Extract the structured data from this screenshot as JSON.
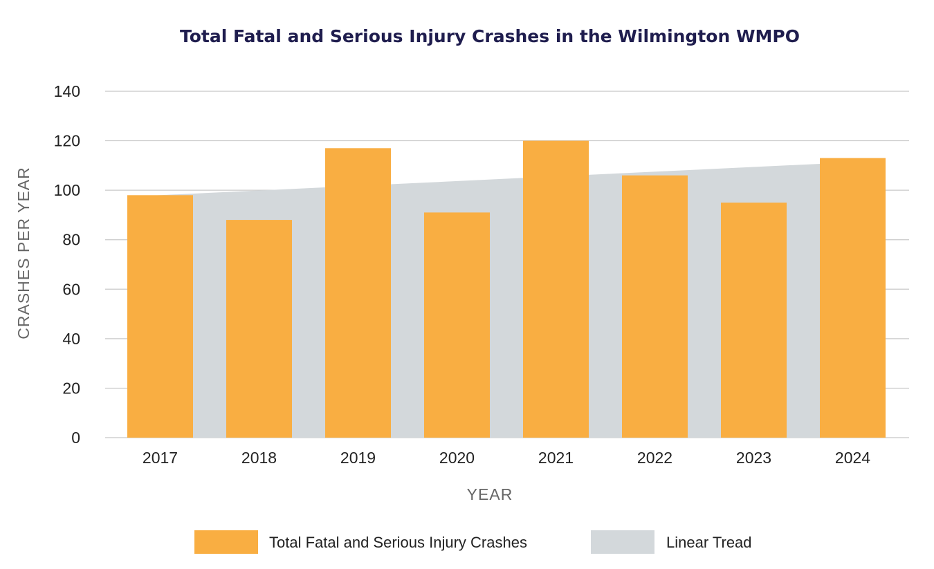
{
  "chart_data": {
    "type": "bar",
    "title": "Total Fatal and Serious Injury Crashes in the Wilmington WMPO",
    "xlabel": "YEAR",
    "ylabel": "CRASHES PER YEAR",
    "categories": [
      "2017",
      "2018",
      "2019",
      "2020",
      "2021",
      "2022",
      "2023",
      "2024"
    ],
    "series": [
      {
        "name": "Total Fatal and Serious Injury Crashes",
        "type": "bar",
        "color": "#F9AE42",
        "values": [
          98,
          88,
          117,
          91,
          120,
          106,
          95,
          113
        ]
      },
      {
        "name": "Linear Tread",
        "type": "area",
        "color": "#D3D8DB",
        "values": [
          98.0,
          99.9,
          101.8,
          103.7,
          105.6,
          107.5,
          109.4,
          111.3
        ]
      }
    ],
    "ylim": [
      0,
      140
    ],
    "yticks": [
      0,
      20,
      40,
      60,
      80,
      100,
      120,
      140
    ],
    "grid": true,
    "legend": "bottom"
  },
  "colors": {
    "title": "#1F1D4E",
    "tick_text": "#222222",
    "axis_label": "#666666",
    "grid": "#C8C8C8"
  }
}
